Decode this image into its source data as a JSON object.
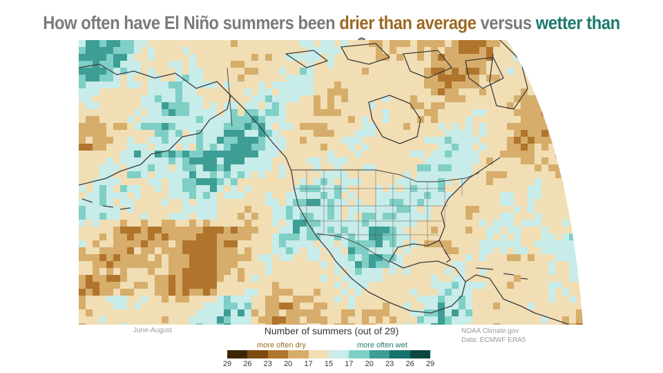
{
  "title": {
    "part1": "How often have El Niño summers been ",
    "dry": "drier than average",
    "part2": " versus ",
    "wet": "wetter than average",
    "part3": "?"
  },
  "notes": {
    "season": "June-August",
    "credit1": "NOAA Climate.gov",
    "credit2": "Data: ECMWF ERA5"
  },
  "legend": {
    "title": "Number of summers (out of 29)",
    "dry_label": "more often dry",
    "wet_label": "more often wet",
    "ticks": [
      "29",
      "26",
      "23",
      "20",
      "17",
      "15",
      "17",
      "20",
      "23",
      "26",
      "29"
    ],
    "colors": [
      "#3e2605",
      "#7a4a10",
      "#b0742c",
      "#d7ad6b",
      "#f1deb5",
      "#c8ece9",
      "#7fcfc6",
      "#3d9e95",
      "#14736c",
      "#0a4740"
    ]
  },
  "map": {
    "ocean_color": "#cfe9e4",
    "land_color": "#e8cf9f",
    "border_color": "#3a3a3a"
  }
}
